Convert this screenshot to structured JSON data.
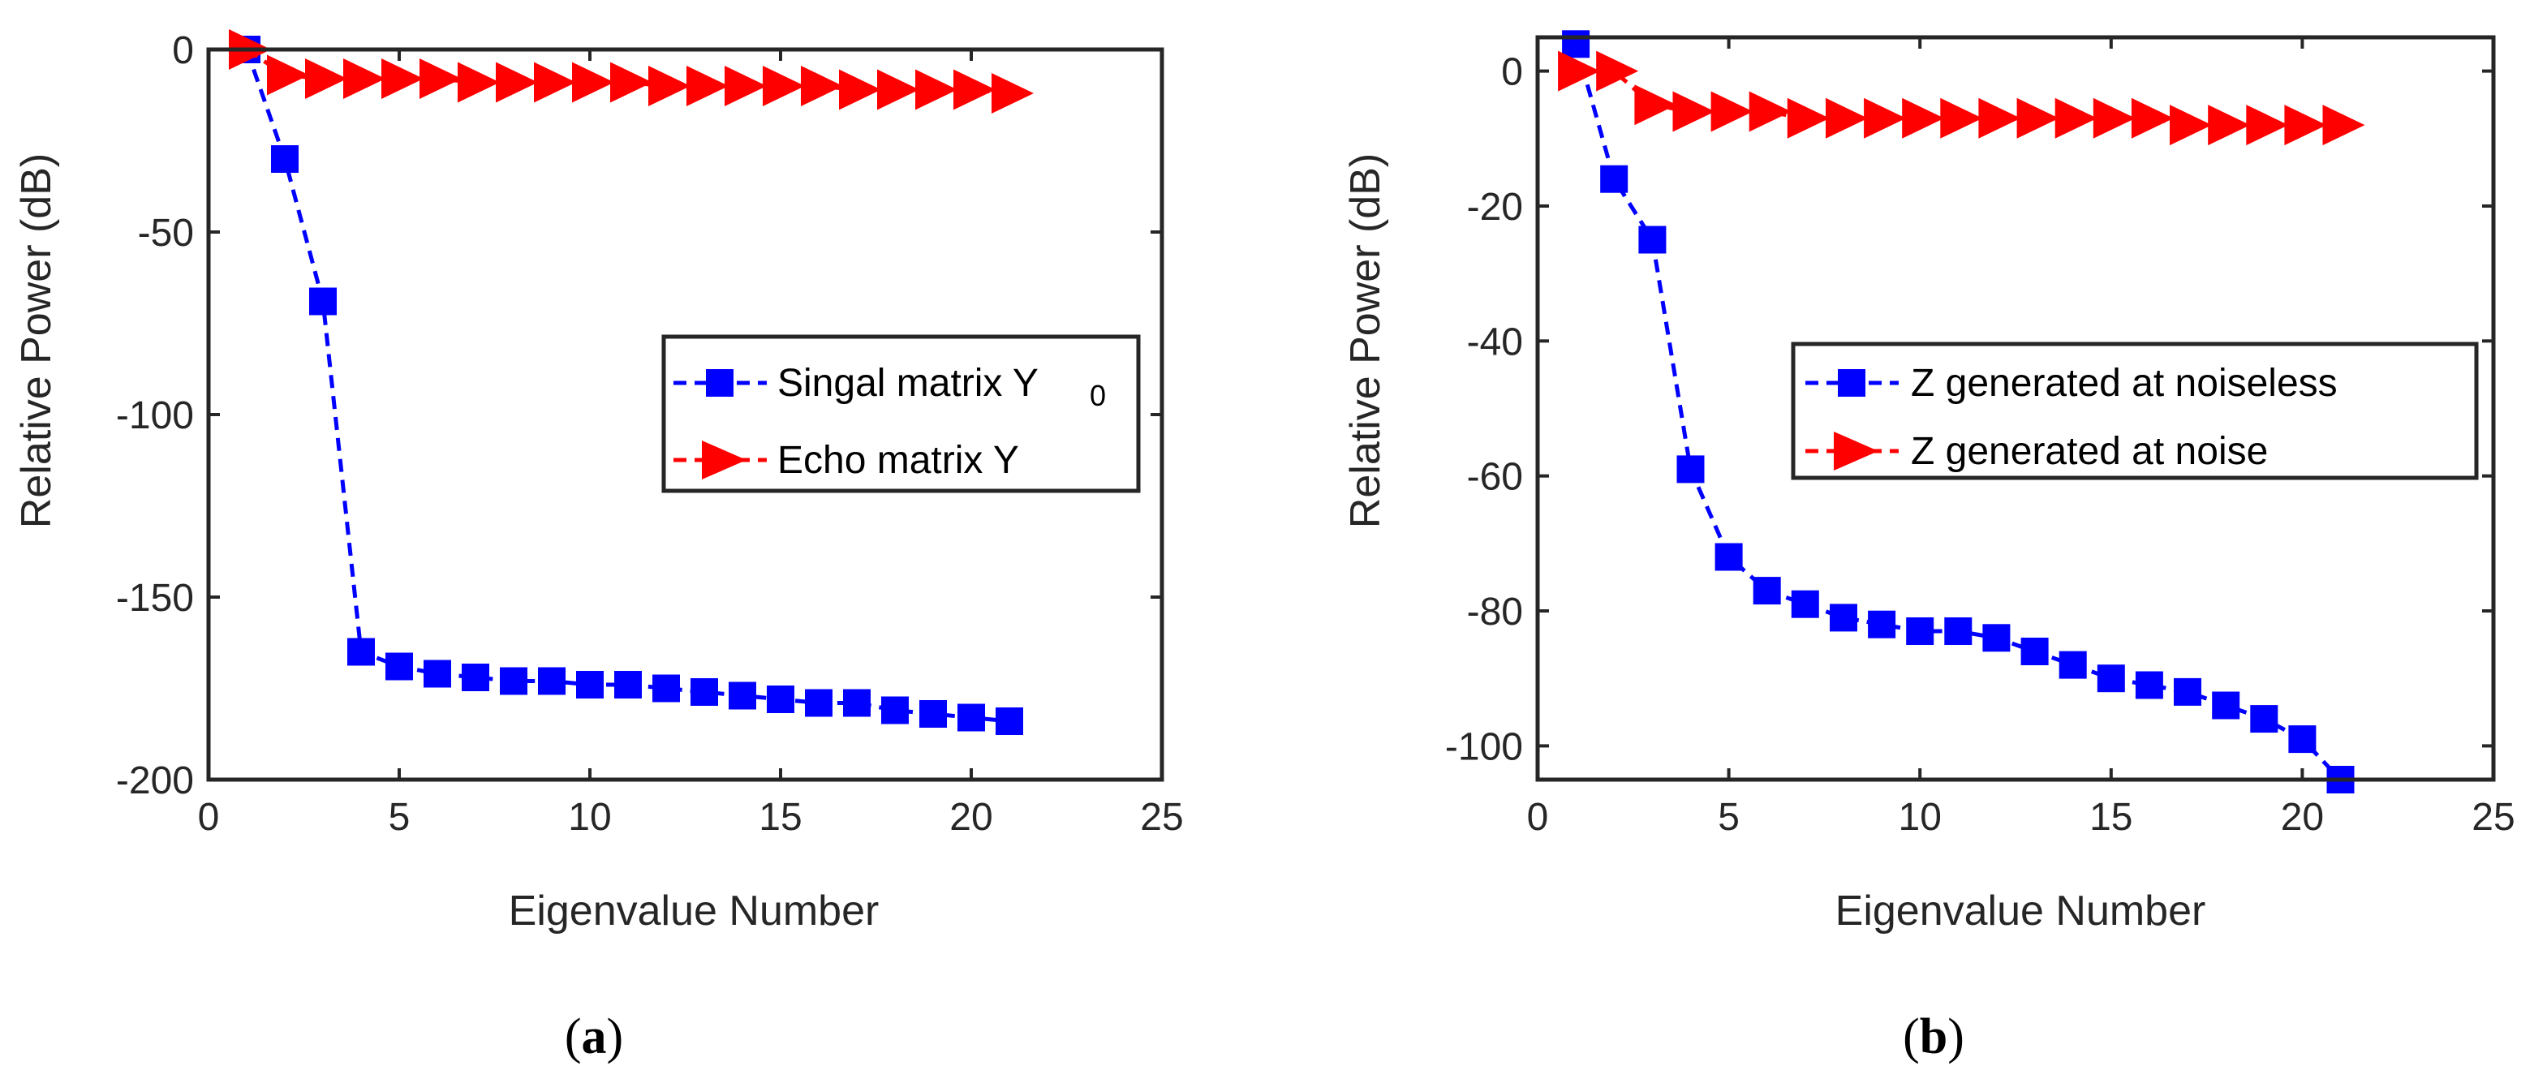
{
  "chart_data": [
    {
      "type": "line",
      "panel": "a",
      "xlabel": "Eigenvalue Number",
      "ylabel": "Relative Power (dB)",
      "xlim": [
        0,
        25
      ],
      "ylim": [
        -200,
        0
      ],
      "xticks": [
        0,
        5,
        10,
        15,
        20,
        25
      ],
      "yticks": [
        0,
        -50,
        -100,
        -150,
        -200
      ],
      "legend_position": "center-right",
      "series": [
        {
          "name": "Singal matrix Y",
          "name_subscript": "0",
          "color": "#0000ff",
          "marker": "square",
          "line_style": "dashed",
          "x": [
            1,
            2,
            3,
            4,
            5,
            6,
            7,
            8,
            9,
            10,
            11,
            12,
            13,
            14,
            15,
            16,
            17,
            18,
            19,
            20,
            21
          ],
          "values": [
            0,
            -30,
            -69,
            -165,
            -169,
            -171,
            -172,
            -173,
            -173,
            -174,
            -174,
            -175,
            -176,
            -177,
            -178,
            -179,
            -179,
            -181,
            -182,
            -183,
            -184
          ]
        },
        {
          "name": "Echo matrix Y",
          "color": "#ff0000",
          "marker": "triangle-right",
          "line_style": "dashed",
          "x": [
            1,
            2,
            3,
            4,
            5,
            6,
            7,
            8,
            9,
            10,
            11,
            12,
            13,
            14,
            15,
            16,
            17,
            18,
            19,
            20,
            21
          ],
          "values": [
            0,
            -7,
            -8,
            -8,
            -8,
            -8,
            -9,
            -9,
            -9,
            -9,
            -9,
            -10,
            -10,
            -10,
            -10,
            -10,
            -11,
            -11,
            -11,
            -11,
            -12
          ]
        }
      ]
    },
    {
      "type": "line",
      "panel": "b",
      "xlabel": "Eigenvalue Number",
      "ylabel": "Relative Power (dB)",
      "xlim": [
        0,
        25
      ],
      "ylim": [
        -105,
        5
      ],
      "xticks": [
        0,
        5,
        10,
        15,
        20,
        25
      ],
      "yticks": [
        0,
        -20,
        -40,
        -60,
        -80,
        -100
      ],
      "legend_position": "center-right",
      "series": [
        {
          "name": "Z generated at noiseless",
          "color": "#0000ff",
          "marker": "square",
          "line_style": "dashed",
          "x": [
            1,
            2,
            3,
            4,
            5,
            6,
            7,
            8,
            9,
            10,
            11,
            12,
            13,
            14,
            15,
            16,
            17,
            18,
            19,
            20,
            21
          ],
          "values": [
            4,
            -16,
            -25,
            -59,
            -72,
            -77,
            -79,
            -81,
            -82,
            -83,
            -83,
            -84,
            -86,
            -88,
            -90,
            -91,
            -92,
            -94,
            -96,
            -99,
            -105
          ]
        },
        {
          "name": "Z generated at noise",
          "color": "#ff0000",
          "marker": "triangle-right",
          "line_style": "dashed",
          "x": [
            1,
            2,
            3,
            4,
            5,
            6,
            7,
            8,
            9,
            10,
            11,
            12,
            13,
            14,
            15,
            16,
            17,
            18,
            19,
            20,
            21
          ],
          "values": [
            0,
            0,
            -5,
            -6,
            -6,
            -6,
            -7,
            -7,
            -7,
            -7,
            -7,
            -7,
            -7,
            -7,
            -7,
            -7,
            -8,
            -8,
            -8,
            -8,
            -8
          ]
        }
      ]
    }
  ],
  "captions": [
    {
      "open": "(",
      "letter": "a",
      "close": ")"
    },
    {
      "open": "(",
      "letter": "b",
      "close": ")"
    }
  ]
}
